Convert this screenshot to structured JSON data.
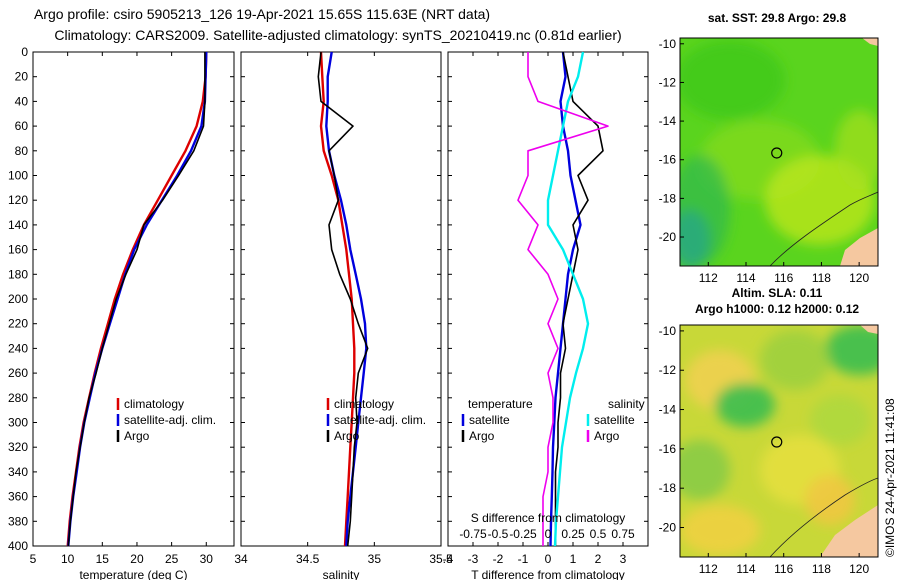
{
  "title_lines": [
    "Argo profile: csiro 5905213_126 19-Apr-2021 15.65S 115.63E (NRT data)",
    "Climatology: CARS2009. Satellite-adjusted climatology: synTS_20210419.nc (0.81d earlier)"
  ],
  "credit": "©IMOS 24-Apr-2021 11:41:08",
  "colors": {
    "climatology": "#dd0000",
    "satellite": "#0000dd",
    "argo": "#000000",
    "magenta": "#ee00ee",
    "cyan": "#00eeee"
  },
  "chart_data": [
    {
      "type": "line",
      "panel": "temperature",
      "xlabel": "temperature (deg C)",
      "xlim": [
        5,
        34
      ],
      "xticks": [
        5,
        10,
        15,
        20,
        25,
        30
      ],
      "ylim": [
        400,
        0
      ],
      "yticks": [
        0,
        20,
        40,
        60,
        80,
        100,
        120,
        140,
        160,
        180,
        200,
        220,
        240,
        260,
        280,
        300,
        320,
        340,
        360,
        380,
        400
      ],
      "legend": [
        "climatology",
        "satellite-adj. clim.",
        "Argo"
      ],
      "series": [
        {
          "name": "climatology",
          "color": "#dd0000",
          "x": [
            30.0,
            29.9,
            29.5,
            28.6,
            27.0,
            25.0,
            23.0,
            21.0,
            19.4,
            18.0,
            16.8,
            15.8,
            14.8,
            13.9,
            13.1,
            12.3,
            11.7,
            11.2,
            10.7,
            10.3,
            10.0
          ],
          "y": [
            0,
            20,
            40,
            60,
            80,
            100,
            120,
            140,
            160,
            180,
            200,
            220,
            240,
            260,
            280,
            300,
            320,
            340,
            360,
            380,
            400
          ]
        },
        {
          "name": "satellite-adj. clim.",
          "color": "#0000dd",
          "x": [
            30.0,
            29.9,
            29.8,
            29.3,
            27.8,
            25.8,
            23.6,
            21.4,
            19.6,
            18.3,
            17.2,
            16.1,
            15.0,
            14.0,
            13.2,
            12.4,
            11.8,
            11.3,
            10.8,
            10.4,
            10.1
          ],
          "y": [
            0,
            20,
            40,
            60,
            80,
            100,
            120,
            140,
            160,
            180,
            200,
            220,
            240,
            260,
            280,
            300,
            320,
            340,
            360,
            380,
            400
          ]
        },
        {
          "name": "Argo",
          "color": "#000000",
          "x": [
            29.8,
            29.8,
            29.8,
            29.6,
            28.2,
            26.0,
            23.7,
            21.0,
            20.0,
            18.4,
            17.0,
            16.0,
            15.0,
            14.1,
            13.1,
            12.4,
            11.8,
            11.2,
            10.8,
            10.4,
            10.1
          ],
          "y": [
            0,
            20,
            40,
            60,
            80,
            100,
            120,
            140,
            160,
            180,
            200,
            220,
            240,
            260,
            280,
            300,
            320,
            340,
            360,
            380,
            400
          ]
        }
      ]
    },
    {
      "type": "line",
      "panel": "salinity",
      "xlabel": "salinity",
      "xlim": [
        34,
        35.5
      ],
      "xticks": [
        34,
        34.5,
        35,
        35.5
      ],
      "ylim": [
        400,
        0
      ],
      "legend": [
        "climatology",
        "satellite-adj. clim.",
        "Argo"
      ],
      "series": [
        {
          "name": "climatology",
          "color": "#dd0000",
          "x": [
            34.6,
            34.61,
            34.62,
            34.6,
            34.62,
            34.68,
            34.73,
            34.76,
            34.79,
            34.81,
            34.83,
            34.84,
            34.85,
            34.85,
            34.84,
            34.83,
            34.82,
            34.81,
            34.8,
            34.79,
            34.78
          ],
          "y": [
            0,
            20,
            40,
            60,
            80,
            100,
            120,
            140,
            160,
            180,
            200,
            220,
            240,
            260,
            280,
            300,
            320,
            340,
            360,
            380,
            400
          ]
        },
        {
          "name": "satellite-adj. clim.",
          "color": "#0000dd",
          "x": [
            34.68,
            34.65,
            34.65,
            34.64,
            34.66,
            34.7,
            34.75,
            34.79,
            34.82,
            34.86,
            34.9,
            34.93,
            34.94,
            34.92,
            34.9,
            34.88,
            34.86,
            34.84,
            34.82,
            34.8,
            34.79
          ],
          "y": [
            0,
            20,
            40,
            60,
            80,
            100,
            120,
            140,
            160,
            180,
            200,
            220,
            240,
            260,
            280,
            300,
            320,
            340,
            360,
            380,
            400
          ]
        },
        {
          "name": "Argo",
          "color": "#000000",
          "x": [
            34.6,
            34.58,
            34.6,
            34.84,
            34.66,
            34.7,
            34.73,
            34.66,
            34.68,
            34.74,
            34.82,
            34.88,
            34.95,
            34.88,
            34.86,
            34.87,
            34.85,
            34.84,
            34.83,
            34.82,
            34.8
          ],
          "y": [
            0,
            20,
            40,
            60,
            80,
            100,
            120,
            140,
            160,
            180,
            200,
            220,
            240,
            260,
            280,
            300,
            320,
            340,
            360,
            380,
            400
          ]
        }
      ]
    },
    {
      "type": "line",
      "panel": "differences",
      "xlabel": "T difference from climatology",
      "xlim": [
        -4,
        4
      ],
      "xticks": [
        -4,
        -3,
        -2,
        -1,
        0,
        1,
        2,
        3
      ],
      "top_xlabel": "S difference from climatology",
      "top_xticks": [
        "-0.75",
        "-0.5",
        "-0.25",
        "0",
        "0.25",
        "0.5",
        "0.75"
      ],
      "top_xvalues": [
        -0.75,
        -0.5,
        -0.25,
        0,
        0.25,
        0.5,
        0.75
      ],
      "ylim": [
        400,
        0
      ],
      "legend_left_title": "temperature",
      "legend_right_title": "salinity",
      "legend_left": [
        "satellite",
        "Argo"
      ],
      "legend_right": [
        "satellite",
        "Argo"
      ],
      "series": [
        {
          "name": "temperature satellite",
          "color": "#0000dd",
          "x": [
            0.6,
            0.7,
            0.5,
            0.6,
            0.8,
            0.9,
            1.1,
            1.3,
            1.0,
            0.8,
            0.7,
            0.6,
            0.5,
            0.4,
            0.3,
            0.25,
            0.2,
            0.18,
            0.15,
            0.12,
            0.1
          ],
          "y": [
            0,
            20,
            40,
            60,
            80,
            100,
            120,
            140,
            160,
            180,
            200,
            220,
            240,
            260,
            280,
            300,
            320,
            340,
            360,
            380,
            400
          ]
        },
        {
          "name": "temperature Argo",
          "color": "#000000",
          "x": [
            0.6,
            0.8,
            1.0,
            2.0,
            2.2,
            1.2,
            1.6,
            1.0,
            1.2,
            1.0,
            0.8,
            0.6,
            0.7,
            0.5,
            0.5,
            0.4,
            0.4,
            0.3,
            0.3,
            0.3,
            0.3
          ],
          "y": [
            0,
            20,
            40,
            60,
            80,
            100,
            120,
            140,
            160,
            180,
            200,
            220,
            240,
            260,
            280,
            300,
            320,
            340,
            360,
            380,
            400
          ]
        },
        {
          "name": "salinity satellite",
          "color": "#00eeee",
          "x": [
            0.35,
            0.3,
            0.2,
            0.15,
            0.1,
            0.05,
            0.0,
            0.0,
            0.15,
            0.25,
            0.35,
            0.4,
            0.35,
            0.28,
            0.22,
            0.18,
            0.14,
            0.12,
            0.1,
            0.08,
            0.07
          ],
          "y": [
            0,
            20,
            40,
            60,
            80,
            100,
            120,
            140,
            160,
            180,
            200,
            220,
            240,
            260,
            280,
            300,
            320,
            340,
            360,
            380,
            400
          ]
        },
        {
          "name": "salinity Argo",
          "color": "#ee00ee",
          "x": [
            -0.2,
            -0.2,
            -0.1,
            0.6,
            -0.2,
            -0.2,
            -0.3,
            -0.1,
            -0.2,
            0.0,
            0.1,
            0.0,
            0.1,
            0.0,
            0.05,
            0.05,
            0.0,
            0.0,
            -0.05,
            -0.05,
            -0.05
          ],
          "y": [
            0,
            20,
            40,
            60,
            80,
            100,
            120,
            140,
            160,
            180,
            200,
            220,
            240,
            260,
            280,
            300,
            320,
            340,
            360,
            380,
            400
          ]
        }
      ]
    },
    {
      "type": "heatmap",
      "panel": "map-sst",
      "title": "sat. SST: 29.8 Argo: 29.8",
      "xticks": [
        112,
        114,
        116,
        118,
        120
      ],
      "yticks": [
        -10,
        -12,
        -14,
        -16,
        -18,
        -20
      ],
      "xlim": [
        110.5,
        121
      ],
      "ylim": [
        -21.5,
        -9.7
      ],
      "marker": {
        "lon": 115.63,
        "lat": -15.65
      }
    },
    {
      "type": "heatmap",
      "panel": "map-sla",
      "title_lines": [
        "Altim. SLA: 0.11",
        "Argo h1000: 0.12 h2000: 0.12"
      ],
      "xticks": [
        112,
        114,
        116,
        118,
        120
      ],
      "yticks": [
        -10,
        -12,
        -14,
        -16,
        -18,
        -20
      ],
      "xlim": [
        110.5,
        121
      ],
      "ylim": [
        -21.5,
        -9.7
      ],
      "marker": {
        "lon": 115.63,
        "lat": -15.65
      }
    }
  ]
}
